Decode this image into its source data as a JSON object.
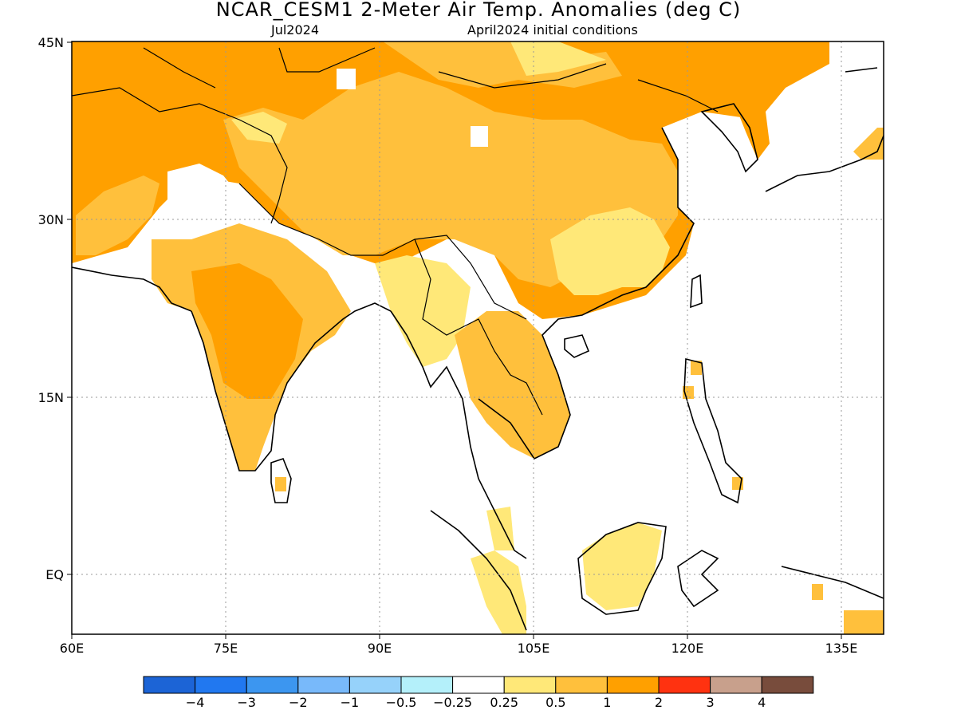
{
  "header": {
    "title": "NCAR_CESM1 2-Meter Air Temp. Anomalies (deg C)",
    "valid_month": "Jul2024",
    "initial_conditions": "April2024 initial conditions"
  },
  "map": {
    "lon_range": [
      60,
      140
    ],
    "lat_range": [
      -5,
      45
    ],
    "lon_ticks": [
      "60E",
      "75E",
      "90E",
      "105E",
      "120E",
      "135E"
    ],
    "lat_ticks": [
      "45N",
      "30N",
      "15N",
      "EQ"
    ],
    "colors": {
      "land_outline": "#000000",
      "gridline": "#999999",
      "frame": "#000000"
    },
    "anomaly_regions": [
      {
        "region": "Central Asia / Iran / Afghanistan",
        "category": "1 to 2"
      },
      {
        "region": "Kazakhstan & Mongolia (north)",
        "category": "1 to 2"
      },
      {
        "region": "Tibetan Plateau & western China",
        "category": "0.5 to 1"
      },
      {
        "region": "Eastern China",
        "category": "0.5 to 1"
      },
      {
        "region": "Southern China",
        "category": "0.25 to 0.5"
      },
      {
        "region": "Pakistan / Indus valley",
        "category": "-0.25 to 0.25"
      },
      {
        "region": "Indian peninsula (central)",
        "category": "1 to 2"
      },
      {
        "region": "Ganges plain / Bangladesh",
        "category": "0.5 to 1"
      },
      {
        "region": "Myanmar",
        "category": "0.25 to 0.5"
      },
      {
        "region": "Thailand / Laos / Cambodia",
        "category": "0.5 to 1"
      },
      {
        "region": "Borneo & Sumatra",
        "category": "0.25 to 0.5"
      },
      {
        "region": "Korea / northern Japan",
        "category": "1 to 2"
      }
    ]
  },
  "colorbar": {
    "colors": [
      "#1c64d6",
      "#2178f0",
      "#3c96f0",
      "#78b9fa",
      "#96d2fa",
      "#b4f0fa",
      "#ffffff",
      "#ffe878",
      "#ffc03c",
      "#ffa000",
      "#ff3210",
      "#c8a08c",
      "#784c3c"
    ],
    "labels": [
      "−4",
      "−3",
      "−2",
      "−1",
      "−0.5",
      "−0.25",
      "0.25",
      "0.5",
      "1",
      "2",
      "3",
      "4"
    ]
  }
}
